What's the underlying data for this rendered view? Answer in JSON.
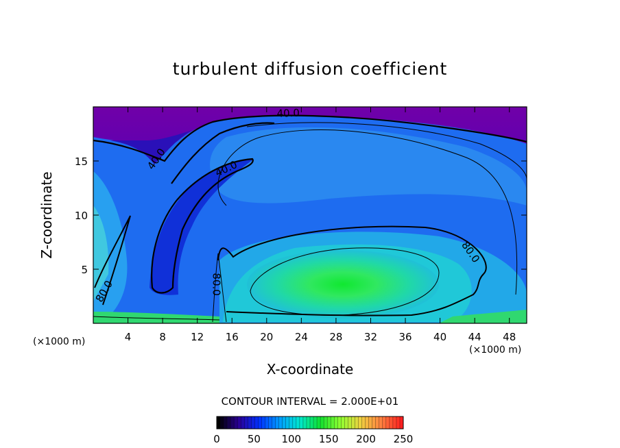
{
  "chart_data": {
    "type": "heatmap",
    "title": "turbulent diffusion coefficient",
    "xlabel": "X-coordinate",
    "ylabel": "Z-coordinate",
    "x_unit_label_left": "(×1000 m)",
    "x_unit_label_right": "(×1000 m)",
    "xlim": [
      0,
      50
    ],
    "ylim": [
      0,
      20
    ],
    "x_ticks": [
      4,
      8,
      12,
      16,
      20,
      24,
      28,
      32,
      36,
      40,
      44,
      48
    ],
    "y_ticks": [
      5,
      10,
      15
    ],
    "contour_interval_text": "CONTOUR INTERVAL = 2.000E+01",
    "contour_labels": [
      {
        "text": "40.0",
        "x": 22.5,
        "z": 19.1
      },
      {
        "text": "40.0",
        "x": 7.6,
        "z": 15.0
      },
      {
        "text": "40.0",
        "x": 15.5,
        "z": 14.0
      },
      {
        "text": "80.0",
        "x": 43.2,
        "z": 6.4
      },
      {
        "text": "80.0",
        "x": 13.8,
        "z": 3.6
      },
      {
        "text": "80.0",
        "x": 1.6,
        "z": 2.8
      }
    ],
    "colorbar": {
      "ticks": [
        0,
        50,
        100,
        150,
        200,
        250
      ],
      "range": [
        0,
        250
      ],
      "colors": [
        "#000000",
        "#2a0096",
        "#0030ff",
        "#009cff",
        "#00e8d0",
        "#10e030",
        "#90ff30",
        "#f0d040",
        "#ff8040",
        "#ff2020"
      ]
    },
    "grid": false,
    "legend": "colorbar-bottom"
  }
}
